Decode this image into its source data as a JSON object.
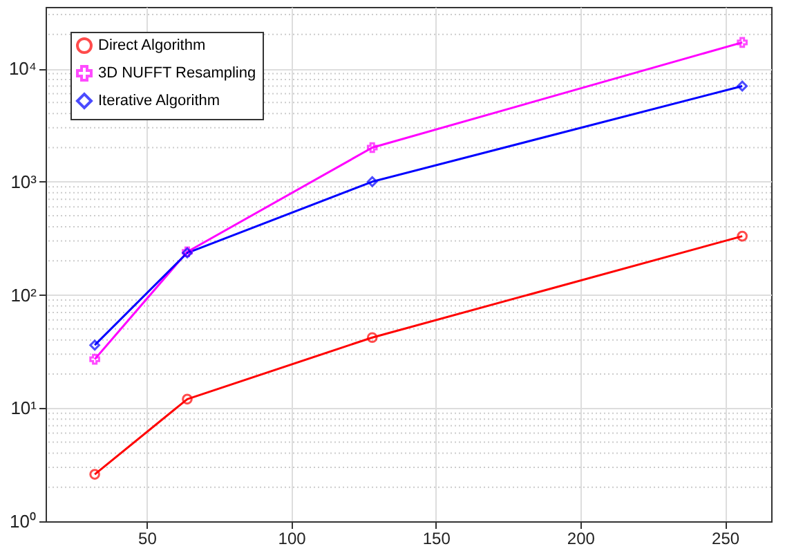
{
  "chart_data": {
    "type": "line",
    "x": [
      32,
      64,
      128,
      256
    ],
    "log": "y",
    "grid": true,
    "legend": "top left",
    "xlim": [
      15,
      266
    ],
    "xticks": [
      50,
      100,
      150,
      200,
      250
    ],
    "ylim": [
      1,
      35000
    ],
    "yticks": [
      {
        "value": 1,
        "label": "10⁰"
      },
      {
        "value": 2,
        "label": null
      },
      {
        "value": 3,
        "label": null
      },
      {
        "value": 4,
        "label": null
      },
      {
        "value": 5,
        "label": null
      },
      {
        "value": 6,
        "label": null
      },
      {
        "value": 7,
        "label": null
      },
      {
        "value": 8,
        "label": null
      },
      {
        "value": 9,
        "label": null
      },
      {
        "value": 10,
        "label": "10¹"
      },
      {
        "value": 20,
        "label": null
      },
      {
        "value": 30,
        "label": null
      },
      {
        "value": 40,
        "label": null
      },
      {
        "value": 50,
        "label": null
      },
      {
        "value": 60,
        "label": null
      },
      {
        "value": 70,
        "label": null
      },
      {
        "value": 80,
        "label": null
      },
      {
        "value": 90,
        "label": null
      },
      {
        "value": 100,
        "label": "10²"
      },
      {
        "value": 200,
        "label": null
      },
      {
        "value": 300,
        "label": null
      },
      {
        "value": 400,
        "label": null
      },
      {
        "value": 500,
        "label": null
      },
      {
        "value": 600,
        "label": null
      },
      {
        "value": 700,
        "label": null
      },
      {
        "value": 800,
        "label": null
      },
      {
        "value": 900,
        "label": null
      },
      {
        "value": 1000,
        "label": "10³"
      },
      {
        "value": 2000,
        "label": null
      },
      {
        "value": 3000,
        "label": null
      },
      {
        "value": 4000,
        "label": null
      },
      {
        "value": 5000,
        "label": null
      },
      {
        "value": 6000,
        "label": null
      },
      {
        "value": 7000,
        "label": null
      },
      {
        "value": 8000,
        "label": null
      },
      {
        "value": 9000,
        "label": null
      },
      {
        "value": 10000,
        "label": "10⁴"
      },
      {
        "value": 20000,
        "label": null
      },
      {
        "value": 30000,
        "label": null
      }
    ],
    "series": [
      {
        "name": "Direct Algorithm",
        "color": "#ff0000",
        "marker": "circle",
        "values": [
          2.6,
          12,
          42,
          330
        ]
      },
      {
        "name": "3D NUFFT Resampling",
        "color": "#ff00ff",
        "marker": "cross",
        "values": [
          27,
          240,
          2000,
          17000
        ]
      },
      {
        "name": "Iterative Algorithm",
        "color": "#0000ff",
        "marker": "diamond",
        "values": [
          36,
          235,
          1000,
          7000
        ]
      }
    ]
  }
}
